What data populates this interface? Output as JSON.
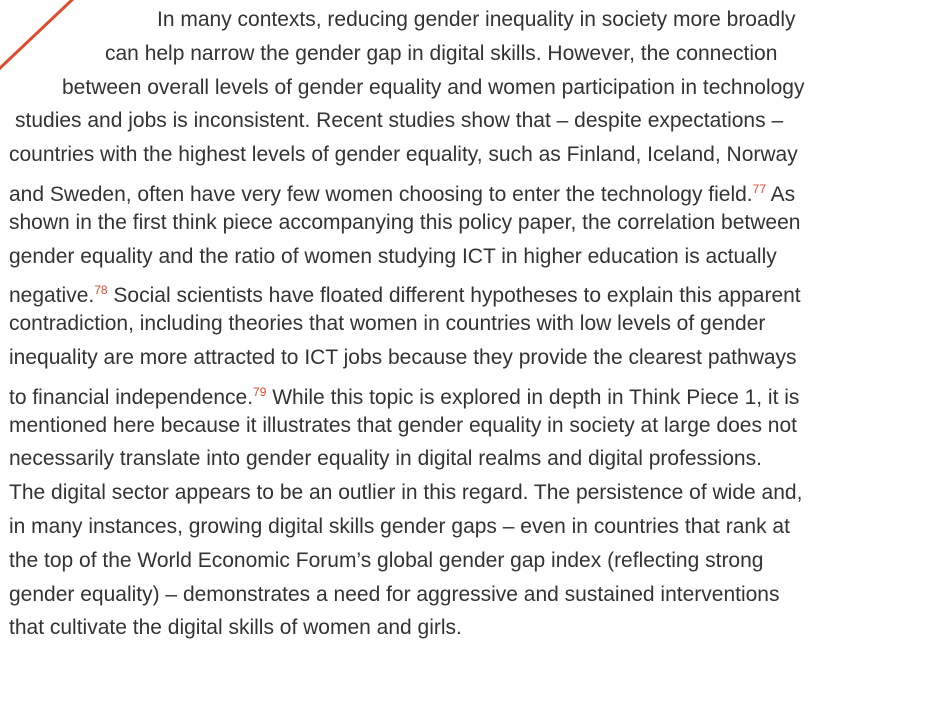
{
  "paragraph": {
    "lines": [
      [
        {
          "text": "In many contexts, reducing gender inequality in society more broadly"
        }
      ],
      [
        {
          "text": "can help narrow the gender gap in digital skills. However, the connection"
        }
      ],
      [
        {
          "text": "between overall levels of gender equality and women participation in technology"
        }
      ],
      [
        {
          "text": "studies and jobs is inconsistent. Recent studies show that – despite expectations –"
        }
      ],
      [
        {
          "text": "countries with the highest levels of gender equality, such as Finland, Iceland, Norway"
        }
      ],
      [
        {
          "text": "and Sweden, often have very few women choosing to enter the technology field."
        },
        {
          "sup": "77"
        },
        {
          "text": " As"
        }
      ],
      [
        {
          "text": "shown in the first think piece accompanying this policy paper, the correlation between"
        }
      ],
      [
        {
          "text": "gender equality and the ratio of women studying ICT in higher education is actually"
        }
      ],
      [
        {
          "text": "negative."
        },
        {
          "sup": "78"
        },
        {
          "text": " Social scientists have floated different hypotheses to explain this apparent"
        }
      ],
      [
        {
          "text": "contradiction, including theories that women in countries with low levels of gender"
        }
      ],
      [
        {
          "text": "inequality are more attracted to ICT jobs because they provide the clearest pathways"
        }
      ],
      [
        {
          "text": "to financial independence."
        },
        {
          "sup": "79"
        },
        {
          "text": " While this topic is explored in depth in Think Piece 1, it is"
        }
      ],
      [
        {
          "text": "mentioned here because it illustrates that gender equality in society at large does not"
        }
      ],
      [
        {
          "text": "necessarily translate into gender equality in digital realms and digital professions."
        }
      ],
      [
        {
          "text": "The digital sector appears to be an outlier in this regard. The persistence of wide and,"
        }
      ],
      [
        {
          "text": "in many instances, growing digital skills gender gaps – even in countries that rank at"
        }
      ],
      [
        {
          "text": "the top of the World Economic Forum’s global gender gap index (reflecting strong"
        }
      ],
      [
        {
          "text": "gender equality) – demonstrates a need for aggressive and sustained interventions"
        }
      ],
      [
        {
          "text": "that cultivate the digital skills of women and girls."
        }
      ]
    ]
  }
}
